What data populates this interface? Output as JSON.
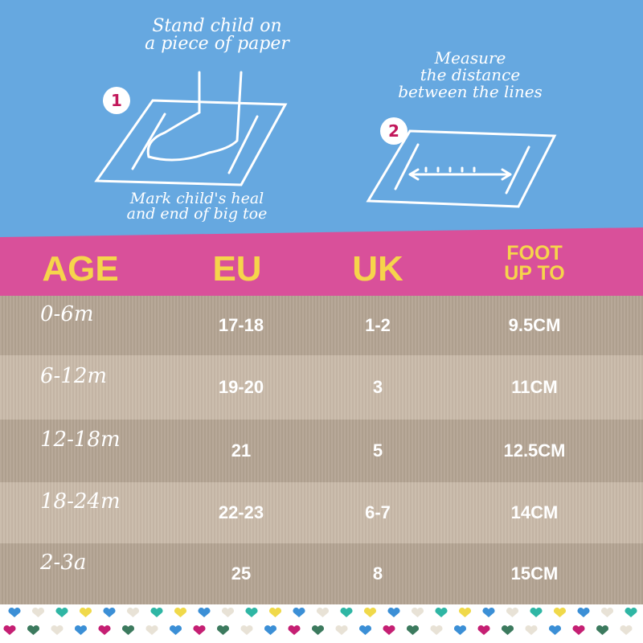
{
  "steps": [
    {
      "number": "1",
      "caption_top": [
        "Stand child on",
        "a piece of paper"
      ],
      "caption_bottom": [
        "Mark child's heal",
        "and end of big toe"
      ]
    },
    {
      "number": "2",
      "caption_top": [
        "Measure",
        "the distance",
        "between the lines"
      ]
    }
  ],
  "table": {
    "headers": [
      "AGE",
      "EU",
      "UK",
      "FOOT UP TO"
    ],
    "header_foot_lines": [
      "FOOT",
      "UP TO"
    ],
    "rows": [
      [
        "0-6m",
        "17-18",
        "1-2",
        "9.5CM"
      ],
      [
        "6-12m",
        "19-20",
        "3",
        "11CM"
      ],
      [
        "12-18m",
        "21",
        "5",
        "12.5CM"
      ],
      [
        "18-24m",
        "22-23",
        "6-7",
        "14CM"
      ],
      [
        "2-3a",
        "25",
        "8",
        "15CM"
      ]
    ]
  },
  "colors": {
    "sky": "#66a8e0",
    "band": "#d9509a",
    "header_text": "#f6d54b",
    "row_dark": "#b4a493",
    "row_light": "#c9baa9",
    "step_number": "#c2185b"
  }
}
